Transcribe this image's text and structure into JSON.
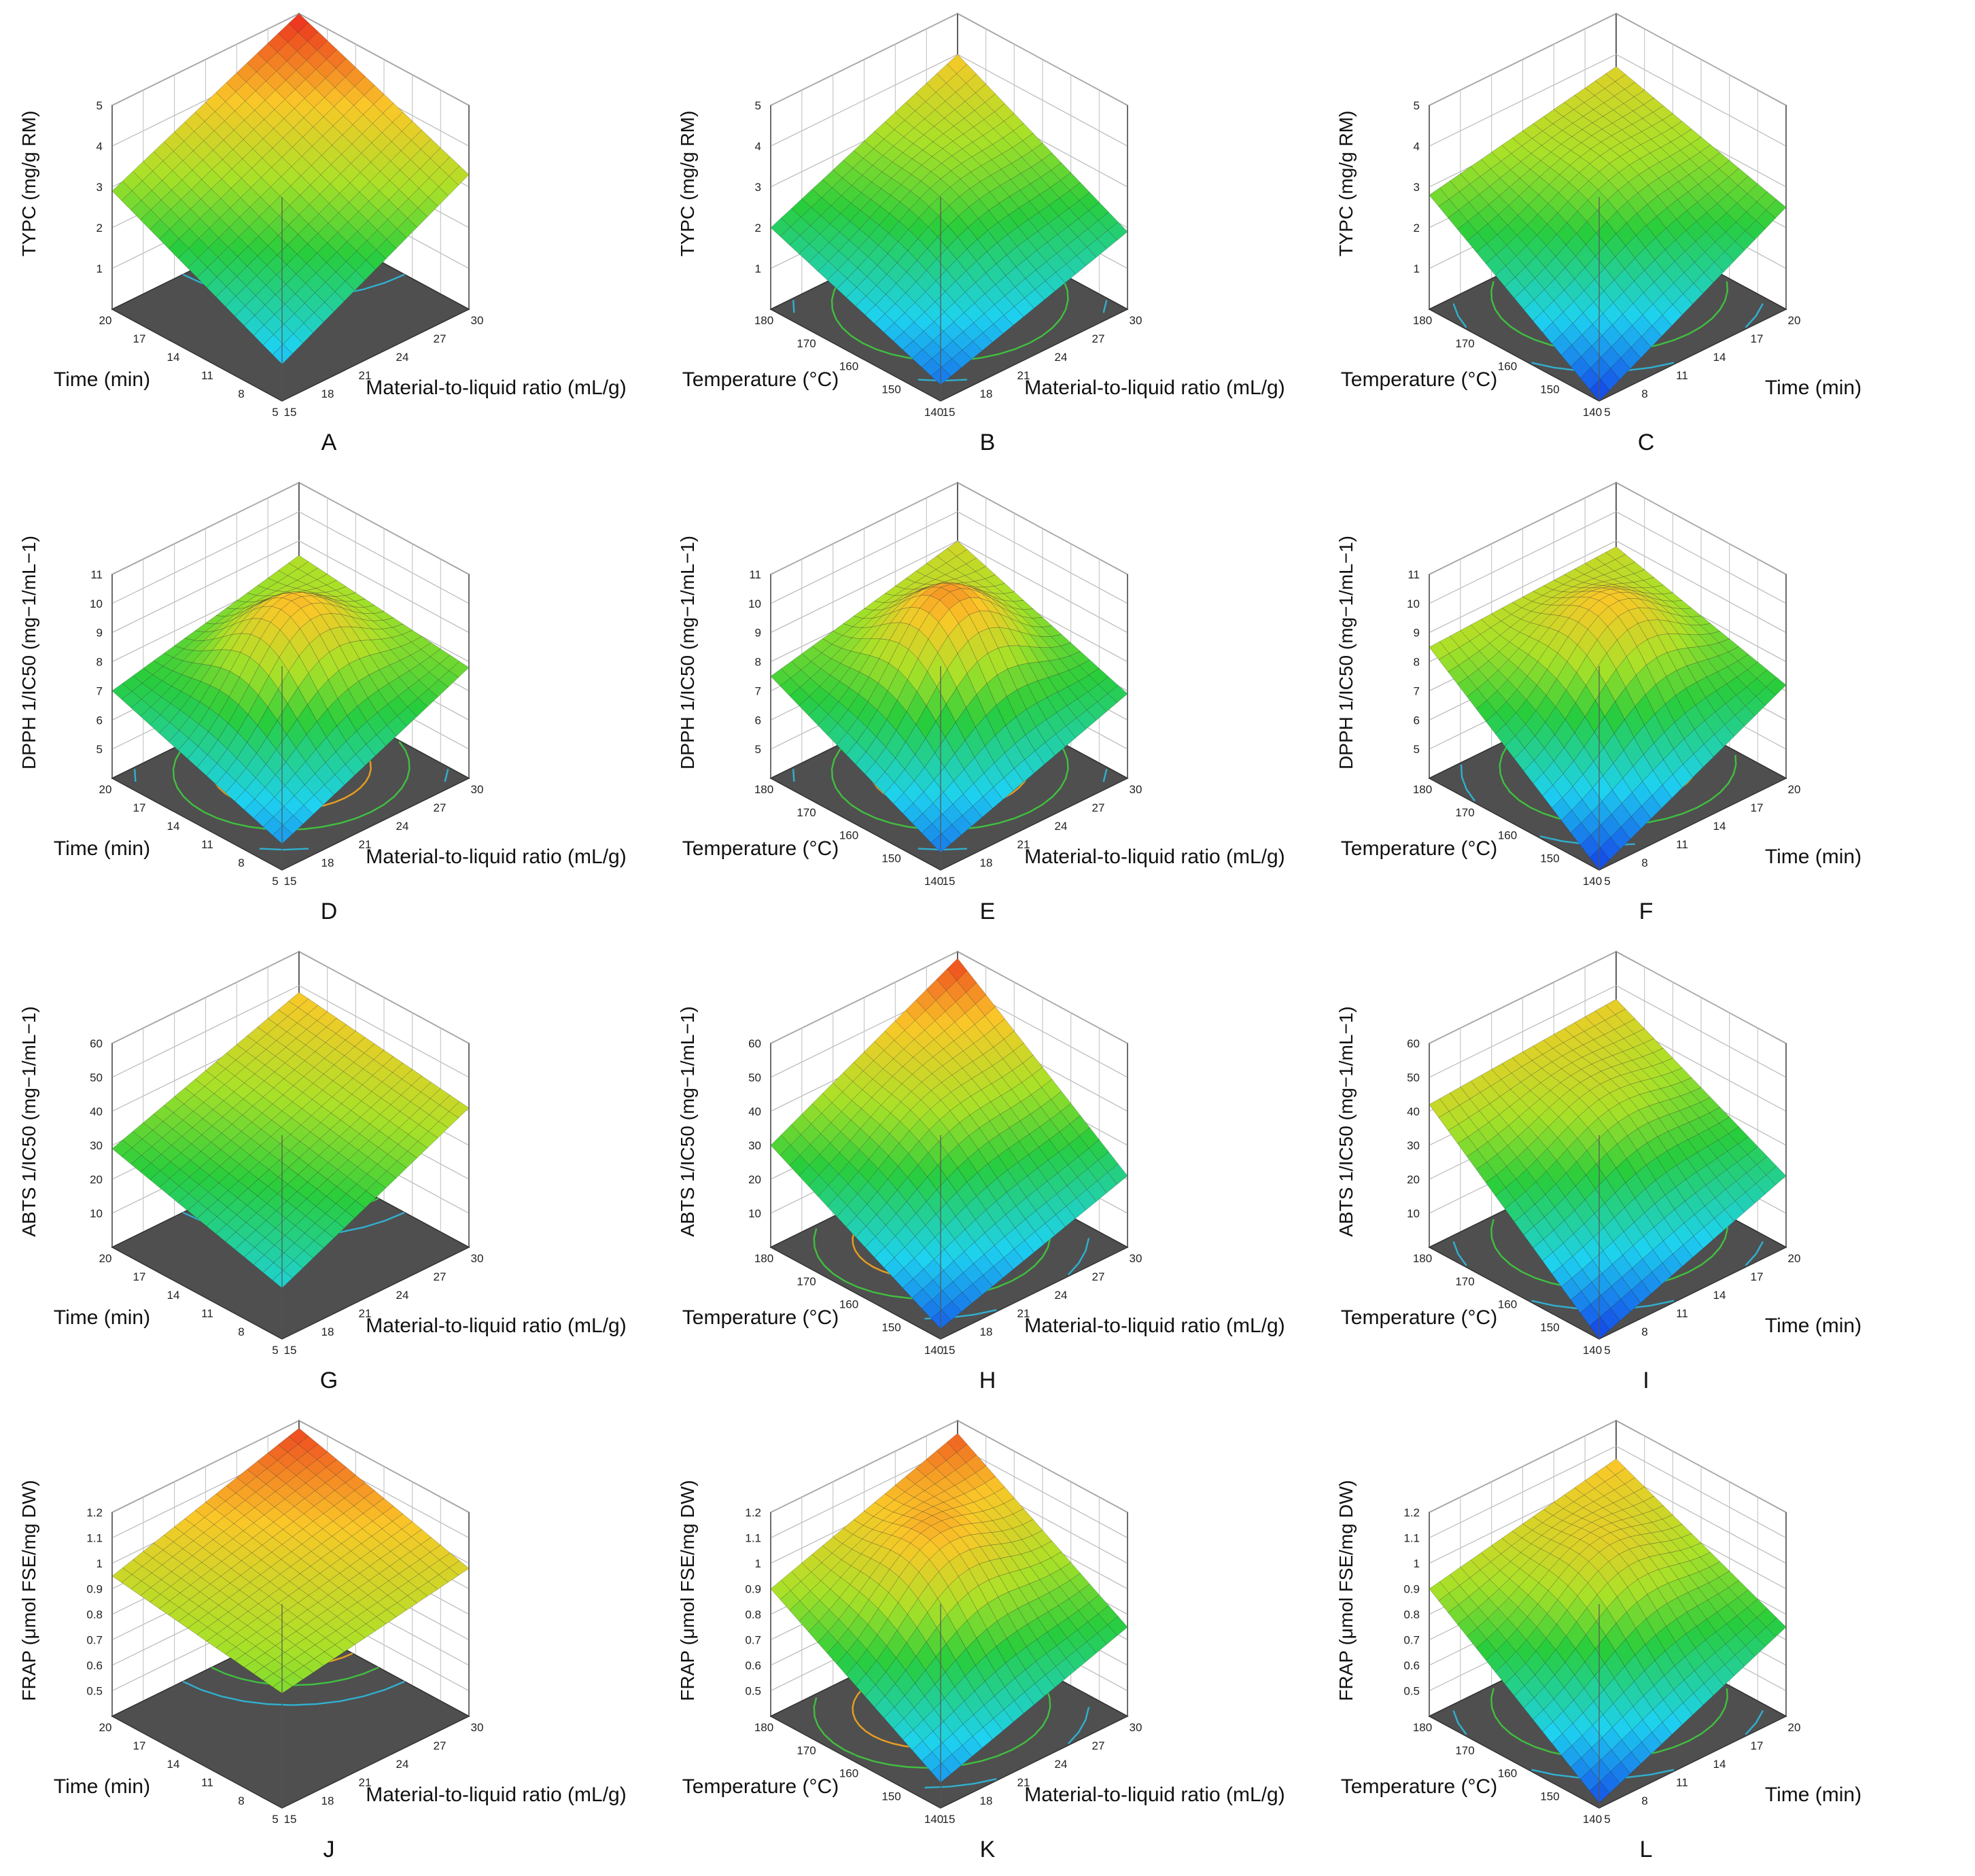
{
  "panels": [
    {
      "letter": "A",
      "zlabel": "TYPC (mg/g RM)",
      "ytitle": "Time (min)",
      "xtitle": "Material-to-liquid ratio (mL/g)",
      "zticks": [
        "1",
        "2",
        "3",
        "4",
        "5"
      ],
      "zrange": [
        0,
        5
      ],
      "yticks": [
        "5",
        "8",
        "11",
        "14",
        "17",
        "20"
      ],
      "xticks": [
        "15",
        "18",
        "21",
        "24",
        "27",
        "30"
      ],
      "corners": {
        "far": 5.0,
        "left": 2.9,
        "right": 3.3,
        "near": 0.9
      },
      "peak": null
    },
    {
      "letter": "B",
      "zlabel": "TYPC (mg/g RM)",
      "ytitle": "Temperature (°C)",
      "xtitle": "Material-to-liquid ratio (mL/g)",
      "zticks": [
        "1",
        "2",
        "3",
        "4",
        "5"
      ],
      "zrange": [
        0,
        5
      ],
      "yticks": [
        "140",
        "150",
        "160",
        "170",
        "180"
      ],
      "xticks": [
        "15",
        "18",
        "21",
        "24",
        "27",
        "30"
      ],
      "corners": {
        "far": 4.0,
        "left": 2.0,
        "right": 1.9,
        "near": 0.4
      },
      "peak": [
        0.55,
        0.55,
        0.3
      ]
    },
    {
      "letter": "C",
      "zlabel": "TYPC (mg/g RM)",
      "ytitle": "Temperature (°C)",
      "xtitle": "Time (min)",
      "zticks": [
        "1",
        "2",
        "3",
        "4",
        "5"
      ],
      "zrange": [
        0,
        5
      ],
      "yticks": [
        "140",
        "150",
        "160",
        "170",
        "180"
      ],
      "xticks": [
        "5",
        "8",
        "11",
        "14",
        "17",
        "20"
      ],
      "corners": {
        "far": 3.7,
        "left": 2.8,
        "right": 2.5,
        "near": 0.0
      },
      "peak": [
        0.6,
        0.6,
        0.3
      ]
    },
    {
      "letter": "D",
      "zlabel": "DPPH 1/IC50 (mg−1/mL−1)",
      "ytitle": "Time (min)",
      "xtitle": "Material-to-liquid ratio (mL/g)",
      "zticks": [
        "5",
        "6",
        "7",
        "8",
        "9",
        "10",
        "11"
      ],
      "zrange": [
        4,
        11
      ],
      "yticks": [
        "5",
        "8",
        "11",
        "14",
        "17",
        "20"
      ],
      "xticks": [
        "15",
        "18",
        "21",
        "24",
        "27",
        "30"
      ],
      "corners": {
        "far": 8.5,
        "left": 7.0,
        "right": 7.8,
        "near": 4.9
      },
      "peak": [
        0.55,
        0.55,
        1.6
      ]
    },
    {
      "letter": "E",
      "zlabel": "DPPH 1/IC50 (mg−1/mL−1)",
      "ytitle": "Temperature (°C)",
      "xtitle": "Material-to-liquid ratio  (mL/g)",
      "zticks": [
        "5",
        "6",
        "7",
        "8",
        "9",
        "10",
        "11"
      ],
      "zrange": [
        4,
        11
      ],
      "yticks": [
        "140",
        "150",
        "160",
        "170",
        "180"
      ],
      "xticks": [
        "15",
        "18",
        "21",
        "24",
        "27",
        "30"
      ],
      "corners": {
        "far": 9.0,
        "left": 7.5,
        "right": 6.9,
        "near": 4.6
      },
      "peak": [
        0.55,
        0.55,
        1.8
      ]
    },
    {
      "letter": "F",
      "zlabel": "DPPH 1/IC50 (mg−1/mL−1)",
      "ytitle": "Temperature (°C)",
      "xtitle": "Time (min)",
      "zticks": [
        "5",
        "6",
        "7",
        "8",
        "9",
        "10",
        "11"
      ],
      "zrange": [
        4,
        11
      ],
      "yticks": [
        "140",
        "150",
        "160",
        "170",
        "180"
      ],
      "xticks": [
        "5",
        "8",
        "11",
        "14",
        "17",
        "20"
      ],
      "corners": {
        "far": 8.8,
        "left": 8.5,
        "right": 7.2,
        "near": 4.0
      },
      "peak": [
        0.6,
        0.55,
        1.4
      ]
    },
    {
      "letter": "G",
      "zlabel": "ABTS 1/IC50 (mg−1/mL−1)",
      "ytitle": "Time (min)",
      "xtitle": "Material-to-liquid ratio  (mL/g)",
      "zticks": [
        "10",
        "20",
        "30",
        "40",
        "50",
        "60"
      ],
      "zrange": [
        0,
        60
      ],
      "yticks": [
        "5",
        "8",
        "11",
        "14",
        "17",
        "20"
      ],
      "xticks": [
        "15",
        "18",
        "21",
        "24",
        "27",
        "30"
      ],
      "corners": {
        "far": 48,
        "left": 29,
        "right": 41,
        "near": 15
      },
      "peak": null
    },
    {
      "letter": "H",
      "zlabel": "ABTS 1/IC50 (mg−1/mL−1)",
      "ytitle": "Temperature (°C)",
      "xtitle": "Material-to-liquid ratio  (mL/g)",
      "zticks": [
        "10",
        "20",
        "30",
        "40",
        "50",
        "60"
      ],
      "zrange": [
        0,
        60
      ],
      "yticks": [
        "140",
        "150",
        "160",
        "170",
        "180"
      ],
      "xticks": [
        "15",
        "18",
        "21",
        "24",
        "27",
        "30"
      ],
      "corners": {
        "far": 58,
        "left": 30,
        "right": 21,
        "near": 3
      },
      "peak": [
        0.5,
        0.6,
        4
      ]
    },
    {
      "letter": "I",
      "zlabel": "ABTS 1/IC50 (mg−1/mL−1)",
      "ytitle": "Temperature (°C)",
      "xtitle": "Time (min)",
      "zticks": [
        "10",
        "20",
        "30",
        "40",
        "50",
        "60"
      ],
      "zrange": [
        0,
        60
      ],
      "yticks": [
        "140",
        "150",
        "160",
        "170",
        "180"
      ],
      "xticks": [
        "5",
        "8",
        "11",
        "14",
        "17",
        "20"
      ],
      "corners": {
        "far": 46,
        "left": 42,
        "right": 21,
        "near": 0
      },
      "peak": [
        0.6,
        0.6,
        5
      ]
    },
    {
      "letter": "J",
      "zlabel": "FRAP (μmol FSE/mg DW)",
      "ytitle": "Time (min)",
      "xtitle": "Material-to-liquid ratio  (mL/g)",
      "zticks": [
        "0.5",
        "0.6",
        "0.7",
        "0.8",
        "0.9",
        "1",
        "1.1",
        "1.2"
      ],
      "zrange": [
        0.4,
        1.2
      ],
      "yticks": [
        "5",
        "8",
        "11",
        "14",
        "17",
        "20"
      ],
      "xticks": [
        "15",
        "18",
        "21",
        "24",
        "27",
        "30"
      ],
      "corners": {
        "far": 1.17,
        "left": 0.95,
        "right": 0.98,
        "near": 0.85
      },
      "peak": null
    },
    {
      "letter": "K",
      "zlabel": "FRAP (μmol FSE/mg DW)",
      "ytitle": "Temperature (°C)",
      "xtitle": "Material-to-liquid ratio  (mL/g)",
      "zticks": [
        "0.5",
        "0.6",
        "0.7",
        "0.8",
        "0.9",
        "1",
        "1.1",
        "1.2"
      ],
      "zrange": [
        0.4,
        1.2
      ],
      "yticks": [
        "140",
        "150",
        "160",
        "170",
        "180"
      ],
      "xticks": [
        "15",
        "18",
        "21",
        "24",
        "27",
        "30"
      ],
      "corners": {
        "far": 1.15,
        "left": 0.9,
        "right": 0.75,
        "near": 0.5
      },
      "peak": [
        0.5,
        0.6,
        0.12
      ]
    },
    {
      "letter": "L",
      "zlabel": "FRAP (μmol FSE/mg DW)",
      "ytitle": "Temperature (°C)",
      "xtitle": "Time (min)",
      "zticks": [
        "0.5",
        "0.6",
        "0.7",
        "0.8",
        "0.9",
        "1",
        "1.1",
        "1.2"
      ],
      "zrange": [
        0.4,
        1.2
      ],
      "yticks": [
        "140",
        "150",
        "160",
        "170",
        "180"
      ],
      "xticks": [
        "5",
        "8",
        "11",
        "14",
        "17",
        "20"
      ],
      "corners": {
        "far": 1.05,
        "left": 0.9,
        "right": 0.75,
        "near": 0.42
      },
      "peak": [
        0.6,
        0.6,
        0.1
      ]
    }
  ],
  "chart_data": {
    "type": "surface",
    "note_series": "3D response surface plots with contour projections (12 panels A–L)",
    "panels": [
      {
        "id": "A",
        "z": "TYPC (mg/g RM)",
        "x": "Material-to-liquid ratio (mL/g)",
        "y": "Time (min)",
        "x_range": [
          15,
          30
        ],
        "y_range": [
          5,
          20
        ],
        "z_range": [
          0,
          5
        ]
      },
      {
        "id": "B",
        "z": "TYPC (mg/g RM)",
        "x": "Material-to-liquid ratio (mL/g)",
        "y": "Temperature (°C)",
        "x_range": [
          15,
          30
        ],
        "y_range": [
          140,
          180
        ],
        "z_range": [
          0,
          5
        ]
      },
      {
        "id": "C",
        "z": "TYPC (mg/g RM)",
        "x": "Time (min)",
        "y": "Temperature (°C)",
        "x_range": [
          5,
          20
        ],
        "y_range": [
          140,
          180
        ],
        "z_range": [
          0,
          5
        ]
      },
      {
        "id": "D",
        "z": "DPPH 1/IC50 (mg−1/mL−1)",
        "x": "Material-to-liquid ratio (mL/g)",
        "y": "Time (min)",
        "x_range": [
          15,
          30
        ],
        "y_range": [
          5,
          20
        ],
        "z_range": [
          4,
          11
        ]
      },
      {
        "id": "E",
        "z": "DPPH 1/IC50 (mg−1/mL−1)",
        "x": "Material-to-liquid ratio (mL/g)",
        "y": "Temperature (°C)",
        "x_range": [
          15,
          30
        ],
        "y_range": [
          140,
          180
        ],
        "z_range": [
          4,
          11
        ]
      },
      {
        "id": "F",
        "z": "DPPH 1/IC50 (mg−1/mL−1)",
        "x": "Time (min)",
        "y": "Temperature (°C)",
        "x_range": [
          5,
          20
        ],
        "y_range": [
          140,
          180
        ],
        "z_range": [
          4,
          11
        ]
      },
      {
        "id": "G",
        "z": "ABTS 1/IC50 (mg−1/mL−1)",
        "x": "Material-to-liquid ratio (mL/g)",
        "y": "Time (min)",
        "x_range": [
          15,
          30
        ],
        "y_range": [
          5,
          20
        ],
        "z_range": [
          0,
          60
        ]
      },
      {
        "id": "H",
        "z": "ABTS 1/IC50 (mg−1/mL−1)",
        "x": "Material-to-liquid ratio (mL/g)",
        "y": "Temperature (°C)",
        "x_range": [
          15,
          30
        ],
        "y_range": [
          140,
          180
        ],
        "z_range": [
          0,
          60
        ]
      },
      {
        "id": "I",
        "z": "ABTS 1/IC50 (mg−1/mL−1)",
        "x": "Time (min)",
        "y": "Temperature (°C)",
        "x_range": [
          5,
          20
        ],
        "y_range": [
          140,
          180
        ],
        "z_range": [
          0,
          60
        ]
      },
      {
        "id": "J",
        "z": "FRAP (μmol FSE/mg DW)",
        "x": "Material-to-liquid ratio (mL/g)",
        "y": "Time (min)",
        "x_range": [
          15,
          30
        ],
        "y_range": [
          5,
          20
        ],
        "z_range": [
          0.4,
          1.2
        ]
      },
      {
        "id": "K",
        "z": "FRAP (μmol FSE/mg DW)",
        "x": "Material-to-liquid ratio (mL/g)",
        "y": "Temperature (°C)",
        "x_range": [
          15,
          30
        ],
        "y_range": [
          140,
          180
        ],
        "z_range": [
          0.4,
          1.2
        ]
      },
      {
        "id": "L",
        "z": "FRAP (μmol FSE/mg DW)",
        "x": "Time (min)",
        "y": "Temperature (°C)",
        "x_range": [
          5,
          20
        ],
        "y_range": [
          140,
          180
        ],
        "z_range": [
          0.4,
          1.2
        ]
      }
    ]
  }
}
